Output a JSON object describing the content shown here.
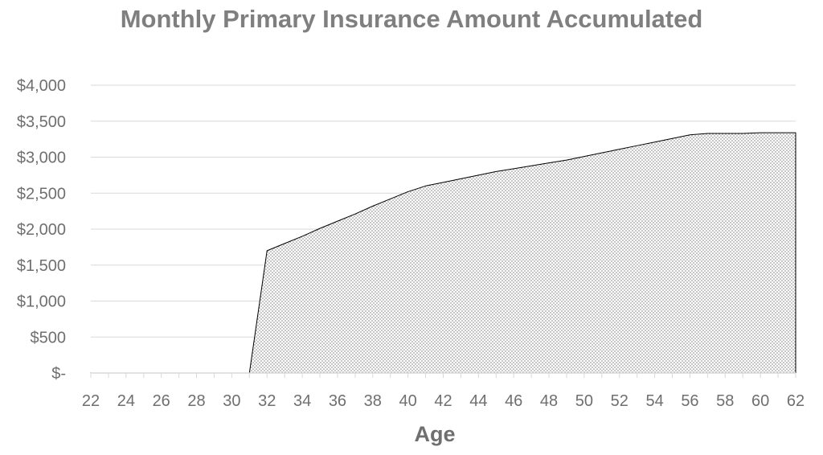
{
  "chart_data": {
    "type": "area",
    "title": "Monthly Primary Insurance Amount Accumulated",
    "xlabel": "Age",
    "ylabel": "",
    "x": [
      22,
      23,
      24,
      25,
      26,
      27,
      28,
      29,
      30,
      31,
      32,
      33,
      34,
      35,
      36,
      37,
      38,
      39,
      40,
      41,
      42,
      43,
      44,
      45,
      46,
      47,
      48,
      49,
      50,
      51,
      52,
      53,
      54,
      55,
      56,
      57,
      58,
      59,
      60,
      61,
      62
    ],
    "values": [
      0,
      0,
      0,
      0,
      0,
      0,
      0,
      0,
      0,
      0,
      1700,
      1800,
      1900,
      2010,
      2110,
      2210,
      2320,
      2420,
      2520,
      2600,
      2650,
      2700,
      2750,
      2800,
      2840,
      2880,
      2920,
      2960,
      3010,
      3060,
      3110,
      3160,
      3210,
      3260,
      3310,
      3330,
      3330,
      3330,
      3340,
      3340,
      3340
    ],
    "xlim": [
      22,
      62
    ],
    "ylim": [
      0,
      4000
    ],
    "xticks": [
      22,
      24,
      26,
      28,
      30,
      32,
      34,
      36,
      38,
      40,
      42,
      44,
      46,
      48,
      50,
      52,
      54,
      56,
      58,
      60,
      62
    ],
    "yticks": [
      0,
      500,
      1000,
      1500,
      2000,
      2500,
      3000,
      3500,
      4000
    ],
    "ytick_labels": [
      "$-",
      "$500",
      "$1,000",
      "$1,500",
      "$2,000",
      "$2,500",
      "$3,000",
      "$3,500",
      "$4,000"
    ],
    "grid": true,
    "fill": "dotted",
    "colors": {
      "title": "#7f7f7f",
      "labels": "#6f6f6f",
      "grid": "#d9d9d9",
      "outline": "#000000",
      "dots": "#7a7a7a"
    }
  }
}
